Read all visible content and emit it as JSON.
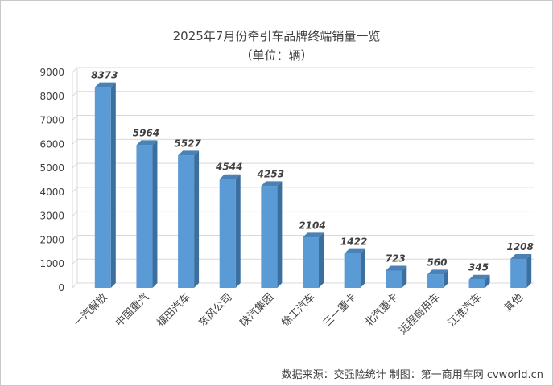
{
  "chart_data": {
    "type": "bar",
    "title": "2025年7月份牵引车品牌终端销量一览",
    "subtitle": "（单位：辆）",
    "categories": [
      "一汽解放",
      "中国重汽",
      "福田汽车",
      "东风公司",
      "陕汽集团",
      "徐工汽车",
      "三一重卡",
      "北汽重卡",
      "远程商用车",
      "江淮汽车",
      "其他"
    ],
    "values": [
      8373,
      5964,
      5527,
      4544,
      4253,
      2104,
      1422,
      723,
      560,
      345,
      1208
    ],
    "y_ticks": [
      "0",
      "1000",
      "2000",
      "3000",
      "4000",
      "5000",
      "6000",
      "7000",
      "8000",
      "9000"
    ],
    "data_labels": [
      "8373",
      "5964",
      "5527",
      "4544",
      "4253",
      "2104",
      "1422",
      "723",
      "560",
      "345",
      "1208"
    ],
    "ylim": [
      0,
      9000
    ],
    "grid": true,
    "legend": "none",
    "colors": {
      "bar_front": "#5b9bd5",
      "bar_side": "#3a6f9f",
      "bar_top": "#4a82b8",
      "grid": "#d9d9d9",
      "text": "#404040"
    }
  },
  "footer": {
    "source": "数据来源：交强险统计   制图：第一商用车网 cvworld.cn"
  }
}
